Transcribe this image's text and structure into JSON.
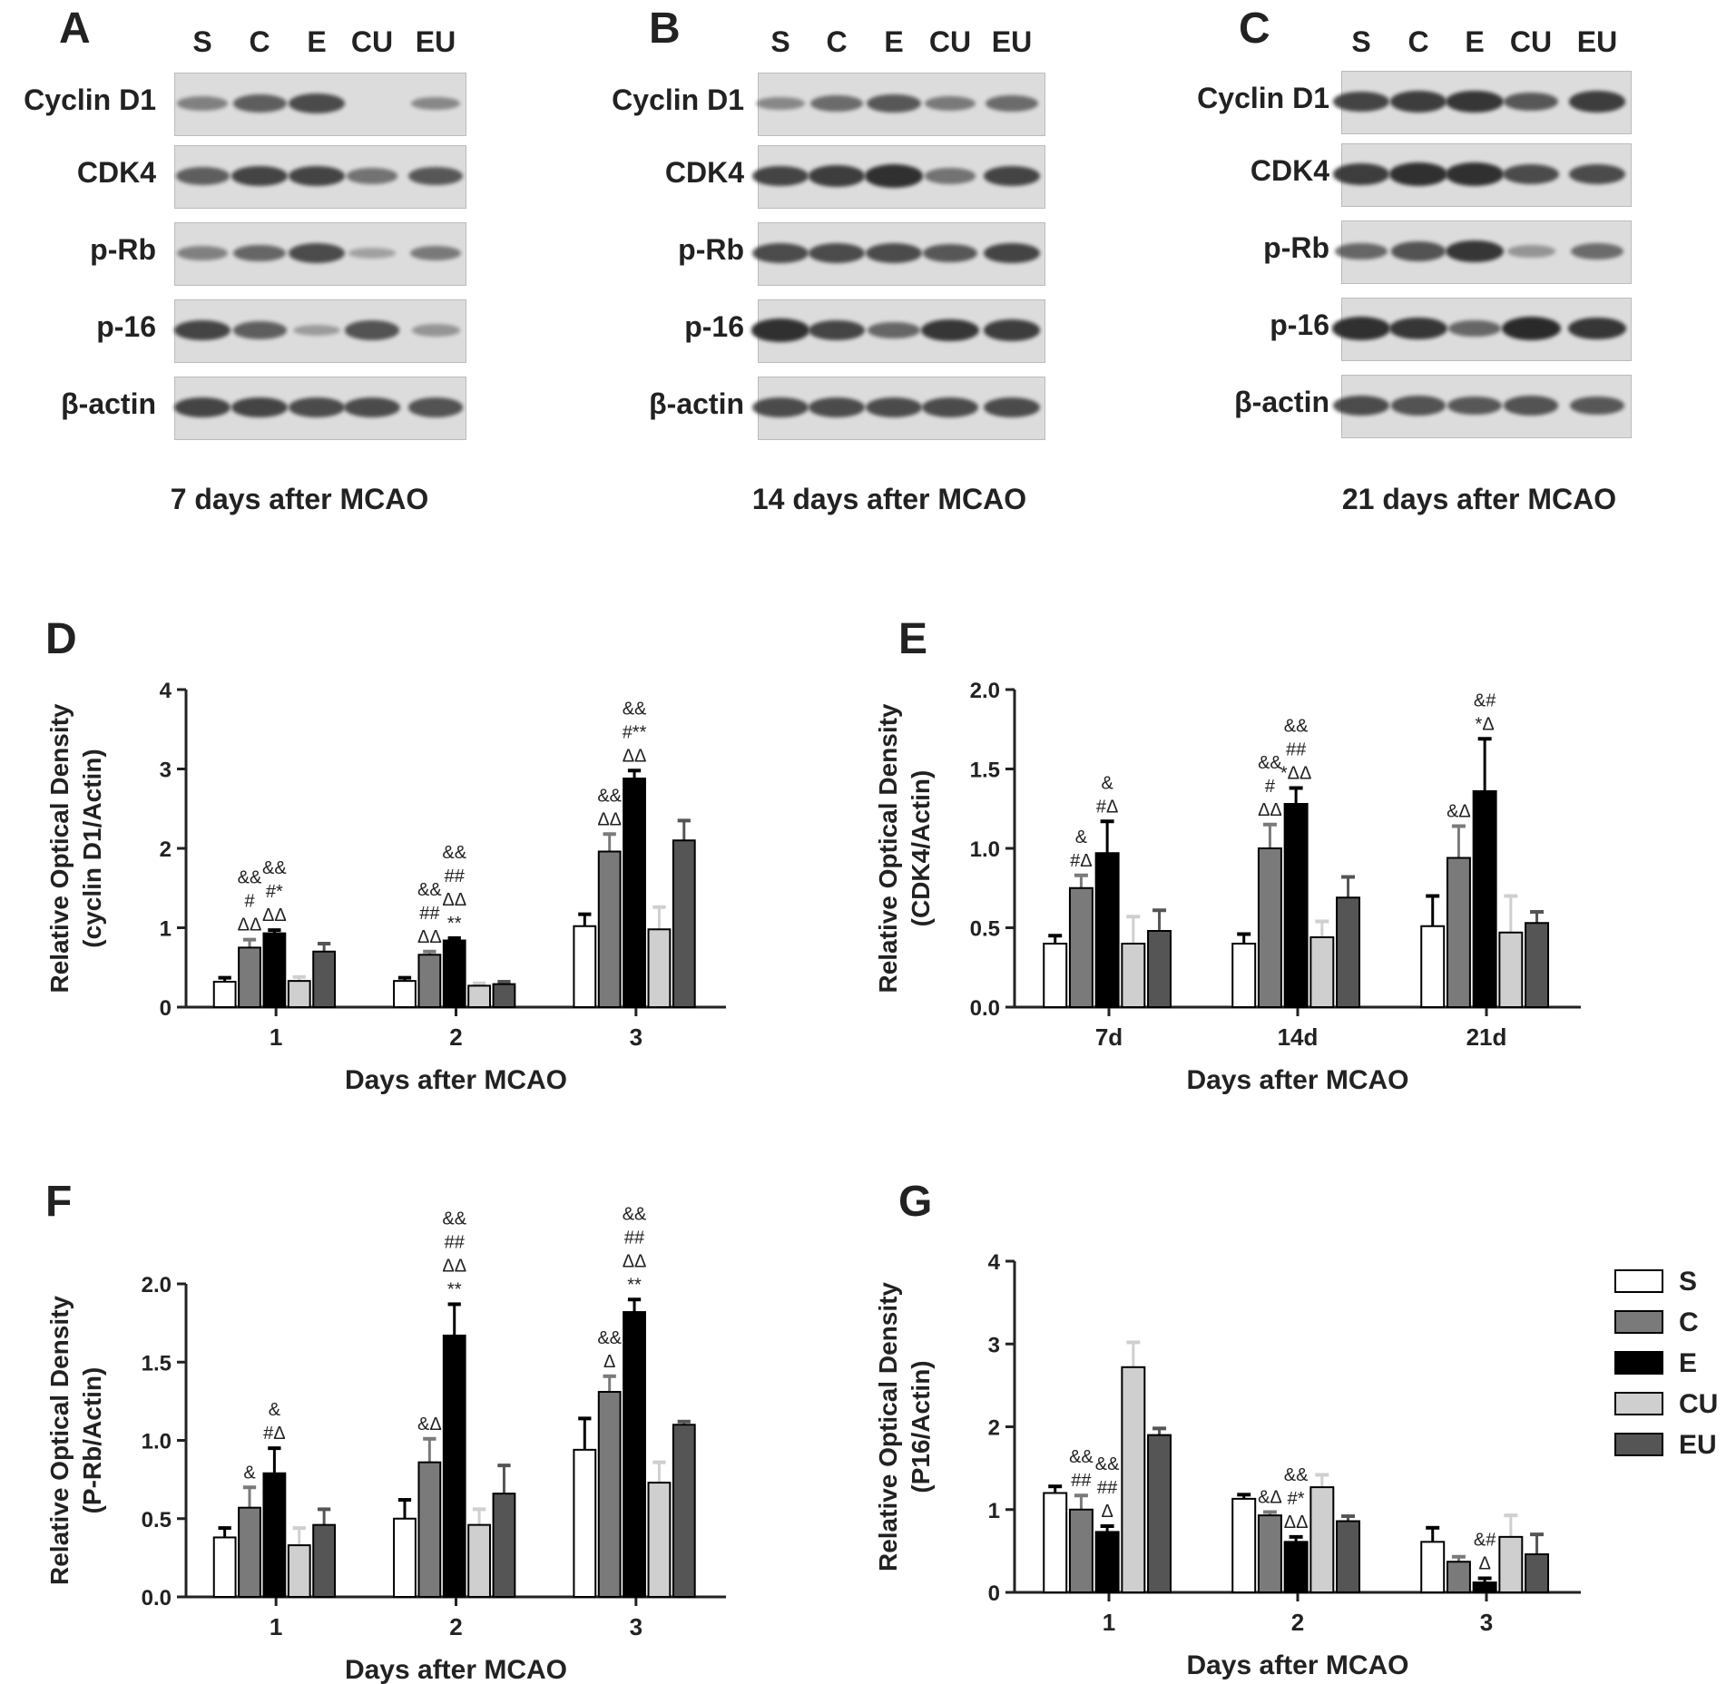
{
  "lanes": [
    "S",
    "C",
    "E",
    "CU",
    "EU"
  ],
  "blot_panels": [
    {
      "letter": "A",
      "caption": "7 days after MCAO",
      "rows": [
        "Cyclin D1",
        "CDK4",
        "p-Rb",
        "p-16",
        "β-actin"
      ],
      "intensity": [
        [
          0.35,
          0.6,
          0.75,
          0,
          0.3
        ],
        [
          0.6,
          0.8,
          0.8,
          0.45,
          0.65
        ],
        [
          0.35,
          0.55,
          0.75,
          0.1,
          0.4
        ],
        [
          0.8,
          0.6,
          0.15,
          0.7,
          0.2
        ],
        [
          0.8,
          0.8,
          0.75,
          0.75,
          0.7
        ]
      ]
    },
    {
      "letter": "B",
      "caption": "14 days after MCAO",
      "rows": [
        "Cyclin D1",
        "CDK4",
        "p-Rb",
        "p-16",
        "β-actin"
      ],
      "intensity": [
        [
          0.3,
          0.5,
          0.65,
          0.4,
          0.5
        ],
        [
          0.8,
          0.85,
          0.95,
          0.45,
          0.8
        ],
        [
          0.75,
          0.75,
          0.75,
          0.65,
          0.8
        ],
        [
          0.95,
          0.8,
          0.55,
          0.9,
          0.85
        ],
        [
          0.75,
          0.75,
          0.75,
          0.75,
          0.75
        ]
      ]
    },
    {
      "letter": "C",
      "caption": "21 days after MCAO",
      "rows": [
        "Cyclin D1",
        "CDK4",
        "p-Rb",
        "p-16",
        "β-actin"
      ],
      "intensity": [
        [
          0.8,
          0.85,
          0.9,
          0.65,
          0.85
        ],
        [
          0.85,
          0.95,
          0.95,
          0.75,
          0.75
        ],
        [
          0.55,
          0.7,
          0.9,
          0.2,
          0.5
        ],
        [
          0.95,
          0.9,
          0.55,
          1,
          0.9
        ],
        [
          0.75,
          0.7,
          0.65,
          0.7,
          0.65
        ]
      ]
    }
  ],
  "colors": {
    "S": "#ffffff",
    "C": "#7a7a7a",
    "E": "#000000",
    "CU": "#cfcfcf",
    "EU": "#555555"
  },
  "chart_data": [
    {
      "letter": "D",
      "type": "bar",
      "categories": [
        "1",
        "2",
        "3"
      ],
      "xlabel": "Days after MCAO",
      "ylabel": [
        "Relative Optical Density",
        "(cyclin D1/Actin)"
      ],
      "ylim": [
        0,
        4
      ],
      "yticks": [
        0,
        1,
        2,
        3,
        4
      ],
      "tick_labels": [
        "0",
        "1",
        "2",
        "3",
        "4"
      ],
      "series": [
        {
          "name": "S",
          "values": [
            0.32,
            0.33,
            1.02
          ],
          "err": [
            0.05,
            0.04,
            0.15
          ]
        },
        {
          "name": "C",
          "values": [
            0.75,
            0.66,
            1.96
          ],
          "err": [
            0.1,
            0.04,
            0.22
          ]
        },
        {
          "name": "E",
          "values": [
            0.93,
            0.84,
            2.88
          ],
          "err": [
            0.04,
            0.03,
            0.1
          ]
        },
        {
          "name": "CU",
          "values": [
            0.33,
            0.27,
            0.98
          ],
          "err": [
            0.05,
            0.03,
            0.28
          ]
        },
        {
          "name": "EU",
          "values": [
            0.7,
            0.29,
            2.1
          ],
          "err": [
            0.1,
            0.03,
            0.25
          ]
        }
      ],
      "annotations": [
        {
          "cat": 0,
          "s": 1,
          "lines": [
            "&&",
            "#",
            "ΔΔ"
          ]
        },
        {
          "cat": 0,
          "s": 2,
          "lines": [
            "&&",
            "#*",
            "ΔΔ"
          ]
        },
        {
          "cat": 1,
          "s": 1,
          "lines": [
            "&&",
            "##",
            "ΔΔ"
          ]
        },
        {
          "cat": 1,
          "s": 2,
          "lines": [
            "&&",
            "##",
            "ΔΔ",
            "**"
          ]
        },
        {
          "cat": 2,
          "s": 1,
          "lines": [
            "&&",
            "ΔΔ"
          ]
        },
        {
          "cat": 2,
          "s": 2,
          "lines": [
            "&&",
            "#**",
            "ΔΔ"
          ]
        }
      ]
    },
    {
      "letter": "E",
      "type": "bar",
      "categories": [
        "7d",
        "14d",
        "21d"
      ],
      "xlabel": "Days after MCAO",
      "ylabel": [
        "Relative Optical Density",
        "(CDK4/Actin)"
      ],
      "ylim": [
        0,
        2
      ],
      "yticks": [
        0,
        0.5,
        1,
        1.5,
        2
      ],
      "tick_labels": [
        "0.0",
        "0.5",
        "1.0",
        "1.5",
        "2.0"
      ],
      "series": [
        {
          "name": "S",
          "values": [
            0.4,
            0.4,
            0.51
          ],
          "err": [
            0.05,
            0.06,
            0.19
          ]
        },
        {
          "name": "C",
          "values": [
            0.75,
            1.0,
            0.94
          ],
          "err": [
            0.08,
            0.15,
            0.2
          ]
        },
        {
          "name": "E",
          "values": [
            0.97,
            1.28,
            1.36
          ],
          "err": [
            0.2,
            0.1,
            0.33
          ]
        },
        {
          "name": "CU",
          "values": [
            0.4,
            0.44,
            0.47
          ],
          "err": [
            0.17,
            0.1,
            0.23
          ]
        },
        {
          "name": "EU",
          "values": [
            0.48,
            0.69,
            0.53
          ],
          "err": [
            0.13,
            0.13,
            0.07
          ]
        }
      ],
      "annotations": [
        {
          "cat": 0,
          "s": 1,
          "lines": [
            "&",
            "#Δ"
          ]
        },
        {
          "cat": 0,
          "s": 2,
          "lines": [
            "&",
            "#Δ"
          ]
        },
        {
          "cat": 1,
          "s": 1,
          "lines": [
            "&&",
            "#",
            "ΔΔ"
          ]
        },
        {
          "cat": 1,
          "s": 2,
          "lines": [
            "&&",
            "##",
            "*ΔΔ"
          ]
        },
        {
          "cat": 2,
          "s": 1,
          "lines": [
            "&Δ"
          ]
        },
        {
          "cat": 2,
          "s": 2,
          "lines": [
            "&#",
            "*Δ"
          ]
        }
      ]
    },
    {
      "letter": "F",
      "type": "bar",
      "categories": [
        "1",
        "2",
        "3"
      ],
      "xlabel": "Days after MCAO",
      "ylabel": [
        "Relative Optical Density",
        "(P-Rb/Actin)"
      ],
      "ylim": [
        0,
        2
      ],
      "yticks": [
        0,
        0.5,
        1,
        1.5,
        2
      ],
      "tick_labels": [
        "0.0",
        "0.5",
        "1.0",
        "1.5",
        "2.0"
      ],
      "series": [
        {
          "name": "S",
          "values": [
            0.38,
            0.5,
            0.94
          ],
          "err": [
            0.06,
            0.12,
            0.2
          ]
        },
        {
          "name": "C",
          "values": [
            0.57,
            0.86,
            1.31
          ],
          "err": [
            0.13,
            0.15,
            0.1
          ]
        },
        {
          "name": "E",
          "values": [
            0.79,
            1.67,
            1.82
          ],
          "err": [
            0.16,
            0.2,
            0.08
          ]
        },
        {
          "name": "CU",
          "values": [
            0.33,
            0.46,
            0.73
          ],
          "err": [
            0.11,
            0.1,
            0.13
          ]
        },
        {
          "name": "EU",
          "values": [
            0.46,
            0.66,
            1.1
          ],
          "err": [
            0.1,
            0.18,
            0.02
          ]
        }
      ],
      "annotations": [
        {
          "cat": 0,
          "s": 1,
          "lines": [
            "&"
          ]
        },
        {
          "cat": 0,
          "s": 2,
          "lines": [
            "&",
            "#Δ"
          ]
        },
        {
          "cat": 1,
          "s": 1,
          "lines": [
            "&Δ"
          ]
        },
        {
          "cat": 1,
          "s": 2,
          "lines": [
            "&&",
            "##",
            "ΔΔ",
            "**"
          ]
        },
        {
          "cat": 2,
          "s": 1,
          "lines": [
            "&&",
            "Δ"
          ]
        },
        {
          "cat": 2,
          "s": 2,
          "lines": [
            "&&",
            "##",
            "ΔΔ",
            "**"
          ]
        }
      ]
    },
    {
      "letter": "G",
      "type": "bar",
      "categories": [
        "1",
        "2",
        "3"
      ],
      "xlabel": "Days after MCAO",
      "ylabel": [
        "Relative Optical Density",
        "(P16/Actin)"
      ],
      "ylim": [
        0,
        4
      ],
      "yticks": [
        0,
        1,
        2,
        3,
        4
      ],
      "tick_labels": [
        "0",
        "1",
        "2",
        "3",
        "4"
      ],
      "legend": "right",
      "series": [
        {
          "name": "S",
          "values": [
            1.2,
            1.13,
            0.61
          ],
          "err": [
            0.08,
            0.05,
            0.17
          ]
        },
        {
          "name": "C",
          "values": [
            1.0,
            0.93,
            0.37
          ],
          "err": [
            0.17,
            0.04,
            0.06
          ]
        },
        {
          "name": "E",
          "values": [
            0.73,
            0.61,
            0.12
          ],
          "err": [
            0.07,
            0.06,
            0.05
          ]
        },
        {
          "name": "CU",
          "values": [
            2.72,
            1.27,
            0.67
          ],
          "err": [
            0.3,
            0.15,
            0.26
          ]
        },
        {
          "name": "EU",
          "values": [
            1.9,
            0.86,
            0.46
          ],
          "err": [
            0.08,
            0.06,
            0.24
          ]
        }
      ],
      "annotations": [
        {
          "cat": 0,
          "s": 1,
          "lines": [
            "&&",
            "##"
          ]
        },
        {
          "cat": 0,
          "s": 2,
          "lines": [
            "&&",
            "##",
            "Δ"
          ]
        },
        {
          "cat": 1,
          "s": 1,
          "lines": [
            "&Δ"
          ]
        },
        {
          "cat": 1,
          "s": 2,
          "lines": [
            "&&",
            "#*",
            "ΔΔ"
          ]
        },
        {
          "cat": 2,
          "s": 2,
          "lines": [
            "&#",
            "Δ"
          ]
        }
      ]
    }
  ]
}
